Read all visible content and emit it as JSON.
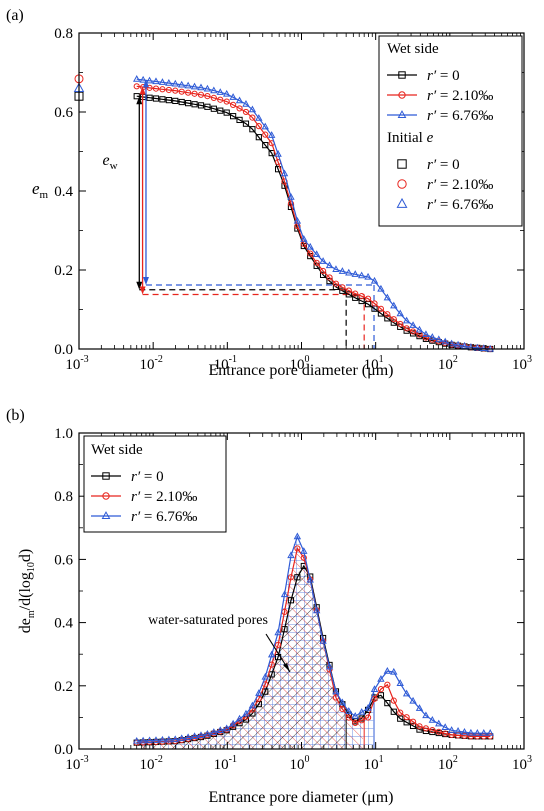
{
  "chart_data": [
    {
      "panel_label": "(a)",
      "type": "line",
      "xscale": "log",
      "xlim": [
        0.001,
        1000
      ],
      "ylim": [
        0,
        0.8
      ],
      "xticks": [
        0.001,
        0.01,
        0.1,
        1,
        10,
        100,
        1000
      ],
      "xtick_labels": [
        [
          "10",
          "-3"
        ],
        [
          "10",
          "-2"
        ],
        [
          "10",
          "-1"
        ],
        [
          "10",
          "0"
        ],
        [
          "10",
          "1"
        ],
        [
          "10",
          "2"
        ],
        [
          "10",
          "3"
        ]
      ],
      "yticks": [
        0,
        0.2,
        0.4,
        0.6,
        0.8
      ],
      "ytick_labels": [
        "0.0",
        "0.2",
        "0.4",
        "0.6",
        "0.8"
      ],
      "xlabel": "Entrance pore diameter (μm)",
      "ylabel": {
        "base": "e",
        "sub": "m"
      },
      "legend_title": "Wet side",
      "legend_title_2": "Initial e",
      "annotation": {
        "base": "e",
        "sub": "w"
      },
      "series": [
        {
          "name": "r′ = 0",
          "color": "#000000",
          "marker": "square",
          "x": [
            0.006,
            0.01,
            0.02,
            0.05,
            0.1,
            0.2,
            0.4,
            0.6,
            1,
            1.5,
            2,
            3,
            5,
            8,
            10,
            15,
            25,
            50,
            100,
            200,
            350
          ],
          "y": [
            0.64,
            0.635,
            0.628,
            0.615,
            0.598,
            0.565,
            0.495,
            0.41,
            0.27,
            0.218,
            0.185,
            0.155,
            0.132,
            0.113,
            0.1,
            0.075,
            0.048,
            0.024,
            0.011,
            0.004,
            0.0
          ]
        },
        {
          "name": "r′ = 2.10‰",
          "color": "#e8251e",
          "marker": "circle",
          "x": [
            0.006,
            0.01,
            0.02,
            0.05,
            0.1,
            0.2,
            0.4,
            0.6,
            1,
            1.5,
            2,
            3,
            5,
            8,
            10,
            15,
            25,
            50,
            100,
            200,
            350
          ],
          "y": [
            0.665,
            0.66,
            0.654,
            0.642,
            0.626,
            0.595,
            0.52,
            0.42,
            0.275,
            0.225,
            0.195,
            0.163,
            0.142,
            0.127,
            0.113,
            0.085,
            0.054,
            0.027,
            0.012,
            0.004,
            0.0
          ]
        },
        {
          "name": "r′ = 6.76‰",
          "color": "#2f5bd6",
          "marker": "triangle",
          "x": [
            0.006,
            0.01,
            0.02,
            0.05,
            0.1,
            0.2,
            0.4,
            0.6,
            1,
            1.5,
            2,
            3,
            5,
            8,
            10,
            15,
            25,
            50,
            100,
            200,
            350
          ],
          "y": [
            0.683,
            0.678,
            0.671,
            0.66,
            0.645,
            0.615,
            0.54,
            0.44,
            0.285,
            0.245,
            0.22,
            0.2,
            0.19,
            0.182,
            0.17,
            0.125,
            0.074,
            0.034,
            0.014,
            0.004,
            0.0
          ]
        }
      ],
      "initial_e": [
        {
          "name": "r′ = 0",
          "color": "#000000",
          "marker": "square",
          "x": 0.001,
          "y": 0.64
        },
        {
          "name": "r′ = 2.10‰",
          "color": "#e8251e",
          "marker": "circle",
          "x": 0.001,
          "y": 0.684
        },
        {
          "name": "r′ = 6.76‰",
          "color": "#2f5bd6",
          "marker": "triangle",
          "x": 0.001,
          "y": 0.66
        }
      ],
      "ew_arrows": [
        {
          "color": "#000000",
          "x": 0.0065,
          "top": 0.64,
          "bottom": 0.15
        },
        {
          "color": "#e8251e",
          "x": 0.0072,
          "top": 0.665,
          "bottom": 0.138
        },
        {
          "color": "#2f5bd6",
          "x": 0.008,
          "top": 0.683,
          "bottom": 0.162
        }
      ],
      "dashed_lines": [
        {
          "color": "#000000",
          "y": 0.15,
          "x": 4.0
        },
        {
          "color": "#e8251e",
          "y": 0.138,
          "x": 7.0
        },
        {
          "color": "#2f5bd6",
          "y": 0.162,
          "x": 9.5
        }
      ]
    },
    {
      "panel_label": "(b)",
      "type": "line",
      "xscale": "log",
      "xlim": [
        0.001,
        1000
      ],
      "ylim": [
        0,
        1.0
      ],
      "xticks": [
        0.001,
        0.01,
        0.1,
        1,
        10,
        100,
        1000
      ],
      "xtick_labels": [
        [
          "10",
          "-3"
        ],
        [
          "10",
          "-2"
        ],
        [
          "10",
          "-1"
        ],
        [
          "10",
          "0"
        ],
        [
          "10",
          "1"
        ],
        [
          "10",
          "2"
        ],
        [
          "10",
          "3"
        ]
      ],
      "yticks": [
        0,
        0.2,
        0.4,
        0.6,
        0.8,
        1.0
      ],
      "ytick_labels": [
        "0.0",
        "0.2",
        "0.4",
        "0.6",
        "0.8",
        "1.0"
      ],
      "xlabel": "Entrance pore diameter (μm)",
      "ylabel": {
        "a": "de",
        "a_sub": "m",
        "b": "/d(log",
        "b_sub": "10",
        "c": "d)"
      },
      "legend_title": "Wet side",
      "annotation": "water-saturated pores",
      "series": [
        {
          "name": "r′ = 0",
          "color": "#000000",
          "marker": "square",
          "x": [
            0.006,
            0.01,
            0.02,
            0.05,
            0.1,
            0.2,
            0.3,
            0.5,
            0.7,
            1.0,
            1.3,
            2,
            3,
            5,
            7,
            10,
            12,
            20,
            40,
            100,
            200,
            350
          ],
          "y": [
            0.02,
            0.022,
            0.025,
            0.04,
            0.06,
            0.1,
            0.16,
            0.3,
            0.46,
            0.59,
            0.55,
            0.34,
            0.17,
            0.085,
            0.1,
            0.17,
            0.17,
            0.1,
            0.06,
            0.045,
            0.04,
            0.04
          ]
        },
        {
          "name": "r′ = 2.10‰",
          "color": "#e8251e",
          "marker": "circle",
          "x": [
            0.006,
            0.01,
            0.02,
            0.05,
            0.1,
            0.2,
            0.3,
            0.5,
            0.7,
            0.9,
            1.2,
            2,
            3,
            5,
            8,
            10,
            14,
            20,
            40,
            100,
            200,
            350
          ],
          "y": [
            0.02,
            0.022,
            0.025,
            0.042,
            0.062,
            0.11,
            0.18,
            0.34,
            0.53,
            0.645,
            0.58,
            0.33,
            0.15,
            0.08,
            0.1,
            0.17,
            0.21,
            0.12,
            0.07,
            0.045,
            0.04,
            0.04
          ]
        },
        {
          "name": "r′ = 6.76‰",
          "color": "#2f5bd6",
          "marker": "triangle",
          "x": [
            0.006,
            0.01,
            0.02,
            0.05,
            0.1,
            0.2,
            0.3,
            0.5,
            0.7,
            0.85,
            1.1,
            2,
            3,
            5,
            8,
            10,
            16,
            25,
            50,
            100,
            200,
            350
          ],
          "y": [
            0.025,
            0.027,
            0.03,
            0.045,
            0.065,
            0.12,
            0.2,
            0.38,
            0.6,
            0.68,
            0.62,
            0.33,
            0.17,
            0.1,
            0.13,
            0.2,
            0.26,
            0.18,
            0.1,
            0.06,
            0.05,
            0.05
          ]
        }
      ],
      "hatch_limits": [
        {
          "color": "#000000",
          "x": 4.0
        },
        {
          "color": "#e8251e",
          "x": 7.0
        },
        {
          "color": "#2f5bd6",
          "x": 9.5
        }
      ]
    }
  ]
}
